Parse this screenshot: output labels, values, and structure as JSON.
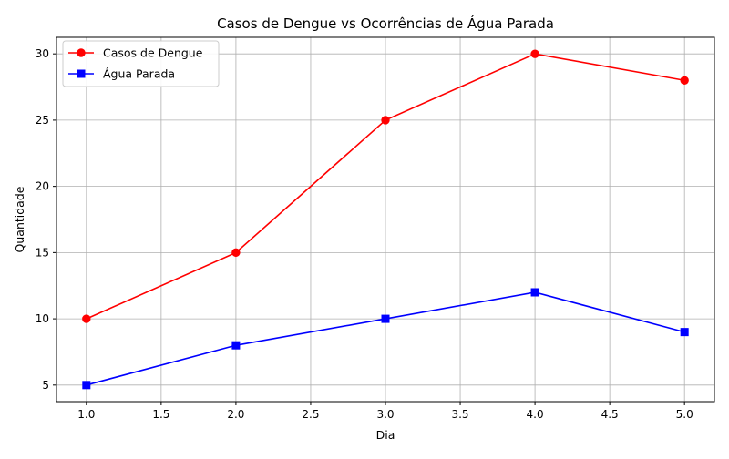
{
  "chart_data": {
    "type": "line",
    "title": "Casos de Dengue vs Ocorrências de Água Parada",
    "xlabel": "Dia",
    "ylabel": "Quantidade",
    "xlim": [
      0.8,
      5.2
    ],
    "ylim": [
      3.75,
      31.25
    ],
    "xticks": [
      1.0,
      1.5,
      2.0,
      2.5,
      3.0,
      3.5,
      4.0,
      4.5,
      5.0
    ],
    "xtick_labels": [
      "1.0",
      "1.5",
      "2.0",
      "2.5",
      "3.0",
      "3.5",
      "4.0",
      "4.5",
      "5.0"
    ],
    "yticks": [
      5,
      10,
      15,
      20,
      25,
      30
    ],
    "ytick_labels": [
      "5",
      "10",
      "15",
      "20",
      "25",
      "30"
    ],
    "grid": true,
    "legend_position": "top-left",
    "x": [
      1,
      2,
      3,
      4,
      5
    ],
    "series": [
      {
        "name": "Casos de Dengue",
        "values": [
          10,
          15,
          25,
          30,
          28
        ],
        "color": "#ff0000",
        "marker": "circle"
      },
      {
        "name": "Água Parada",
        "values": [
          5,
          8,
          10,
          12,
          9
        ],
        "color": "#0000ff",
        "marker": "square"
      }
    ]
  }
}
